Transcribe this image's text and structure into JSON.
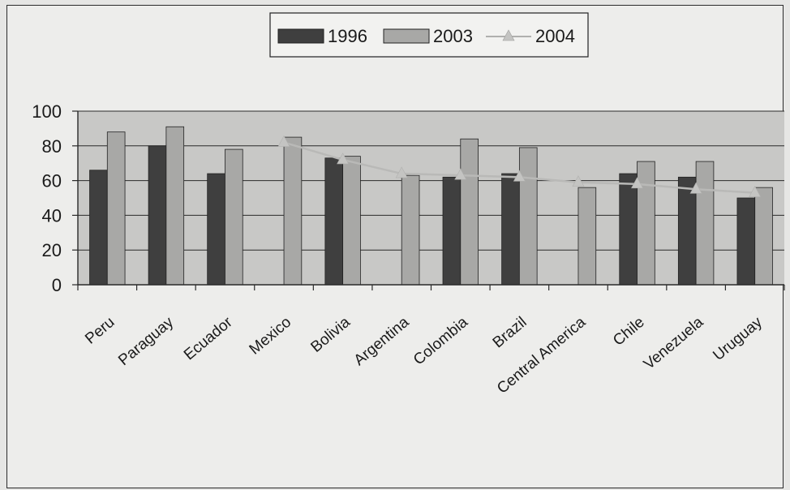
{
  "chart_data": {
    "type": "bar",
    "categories": [
      "Peru",
      "Paraguay",
      "Ecuador",
      "Mexico",
      "Bolivia",
      "Argentina",
      "Colombia",
      "Brazil",
      "Central America",
      "Chile",
      "Venezuela",
      "Uruguay"
    ],
    "series": [
      {
        "name": "1996",
        "kind": "bar",
        "color": "#3f3f3f",
        "values": [
          66,
          80,
          64,
          null,
          73,
          null,
          62,
          64,
          null,
          64,
          62,
          50
        ]
      },
      {
        "name": "2003",
        "kind": "bar",
        "color": "#a8a8a6",
        "values": [
          88,
          91,
          78,
          85,
          74,
          63,
          84,
          79,
          56,
          71,
          71,
          56
        ]
      },
      {
        "name": "2004",
        "kind": "line",
        "color": "#b9b9b7",
        "values": [
          null,
          null,
          null,
          82,
          72,
          64,
          63,
          62,
          59,
          58,
          55,
          53
        ]
      }
    ],
    "yticks": [
      "0",
      "20",
      "40",
      "60",
      "80",
      "100"
    ],
    "ylim": [
      0,
      100
    ],
    "legend_position": "top-center",
    "grid": true
  }
}
